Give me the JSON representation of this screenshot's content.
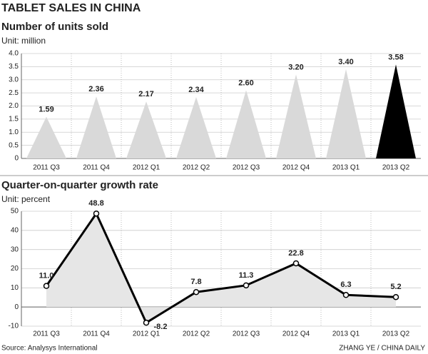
{
  "title": "TABLET SALES IN CHINA",
  "source": "Source: Analysys International",
  "credit": "ZHANG YE / CHINA DAILY",
  "chart_data": [
    {
      "type": "bar",
      "title": "Number of units sold",
      "subtitle": "Unit: million",
      "categories": [
        "2011 Q3",
        "2011 Q4",
        "2012 Q1",
        "2012 Q2",
        "2012 Q3",
        "2012 Q4",
        "2013 Q1",
        "2013 Q2"
      ],
      "values": [
        1.59,
        2.36,
        2.17,
        2.34,
        2.6,
        3.2,
        3.4,
        3.58
      ],
      "value_labels": [
        "1.59",
        "2.36",
        "2.17",
        "2.34",
        "2.60",
        "3.20",
        "3.40",
        "3.58"
      ],
      "colors": [
        "#d9d9d9",
        "#d9d9d9",
        "#d9d9d9",
        "#d9d9d9",
        "#d9d9d9",
        "#d9d9d9",
        "#d9d9d9",
        "#000000"
      ],
      "ylim": [
        0,
        4
      ],
      "yticks": [
        0,
        0.5,
        {
          "value": 1,
          "label": "1.0"
        },
        1.5,
        {
          "value": 2,
          "label": "2.0"
        },
        2.5,
        {
          "value": 3,
          "label": "3.0"
        },
        3.5,
        {
          "value": 4,
          "label": "4.0"
        }
      ],
      "grid": true
    },
    {
      "type": "line",
      "title": "Quarter-on-quarter growth rate",
      "subtitle": "Unit: percent",
      "categories": [
        "2011 Q3",
        "2011 Q4",
        "2012 Q1",
        "2012 Q2",
        "2012 Q3",
        "2012 Q4",
        "2013 Q1",
        "2013 Q2"
      ],
      "values": [
        11.0,
        48.8,
        -8.2,
        7.8,
        11.3,
        22.8,
        6.3,
        5.2
      ],
      "value_labels": [
        "11.0",
        "48.8",
        "-8.2",
        "7.8",
        "11.3",
        "22.8",
        "6.3",
        "5.2"
      ],
      "color": "#000000",
      "area_color": "#e6e6e6",
      "ylim": [
        -10,
        50
      ],
      "yticks": [
        -10,
        0,
        10,
        20,
        30,
        40,
        50
      ],
      "grid": true
    }
  ]
}
